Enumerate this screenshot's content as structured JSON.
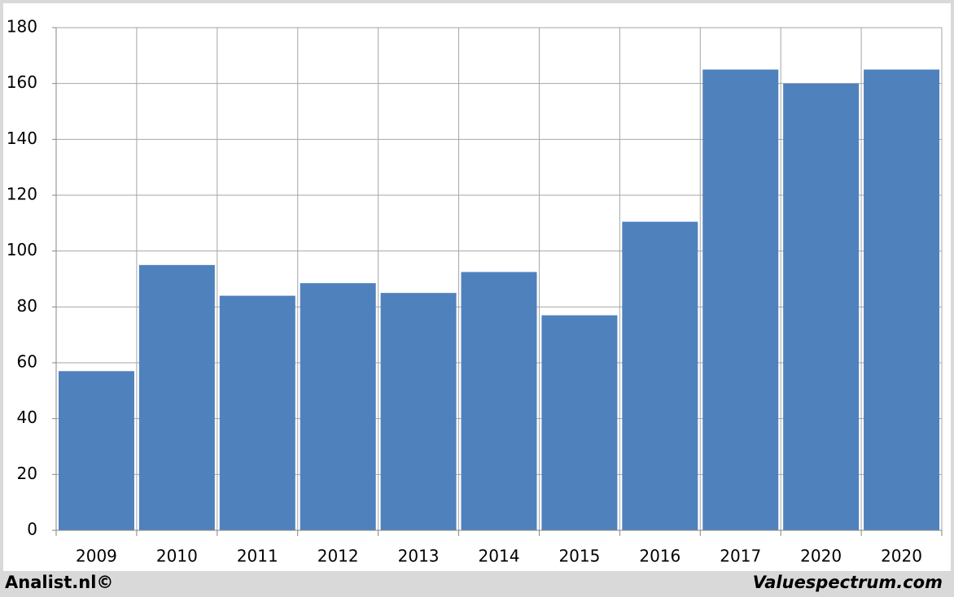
{
  "chart_data": {
    "type": "bar",
    "categories": [
      "2009",
      "2010",
      "2011",
      "2012",
      "2013",
      "2014",
      "2015",
      "2016",
      "2017",
      "2020",
      "2020"
    ],
    "values": [
      57,
      95,
      84,
      88.5,
      85,
      92.5,
      77,
      110.5,
      165,
      160,
      165
    ],
    "color": "#4f81bd",
    "ylim": [
      0,
      180
    ],
    "yticks": [
      0,
      20,
      40,
      60,
      80,
      100,
      120,
      140,
      160,
      180
    ],
    "grid": true,
    "credits": [
      "Analist.nl©",
      "Valuespectrum.com"
    ]
  }
}
